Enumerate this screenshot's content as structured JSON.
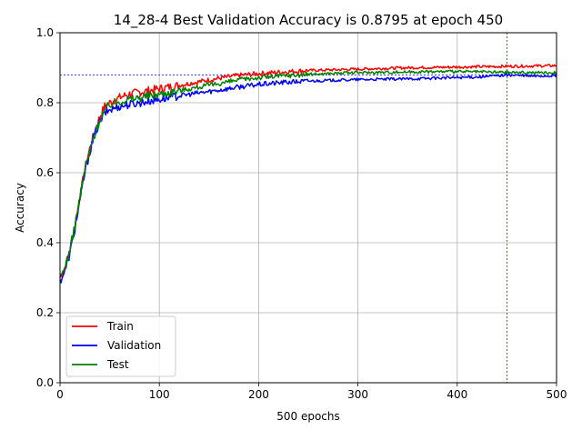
{
  "chart_data": {
    "type": "line",
    "title": "14_28-4 Best Validation Accuracy is 0.8795 at epoch 450",
    "xlabel": "500 epochs",
    "ylabel": "Accuracy",
    "xlim": [
      0,
      500
    ],
    "ylim": [
      0,
      1.0
    ],
    "x_ticks": [
      0,
      100,
      200,
      300,
      400,
      500
    ],
    "y_ticks": [
      0.0,
      0.2,
      0.4,
      0.6,
      0.8,
      1.0
    ],
    "x_tick_labels": [
      "0",
      "100",
      "200",
      "300",
      "400",
      "500"
    ],
    "y_tick_labels": [
      "0.0",
      "0.2",
      "0.4",
      "0.6",
      "0.8",
      "1.0"
    ],
    "grid": true,
    "legend": "lower-left",
    "reference_lines": {
      "best_accuracy": 0.8795,
      "best_epoch": 450,
      "color": "#0000ff"
    },
    "series": [
      {
        "name": "Train",
        "color": "#ff0000",
        "x": [
          0,
          5,
          10,
          15,
          20,
          25,
          30,
          35,
          40,
          45,
          50,
          60,
          70,
          80,
          90,
          100,
          120,
          140,
          160,
          180,
          200,
          225,
          250,
          275,
          300,
          325,
          350,
          375,
          400,
          425,
          450,
          475,
          500
        ],
        "values": [
          0.3,
          0.33,
          0.38,
          0.45,
          0.53,
          0.61,
          0.67,
          0.72,
          0.76,
          0.79,
          0.8,
          0.815,
          0.825,
          0.83,
          0.835,
          0.84,
          0.85,
          0.86,
          0.87,
          0.878,
          0.883,
          0.888,
          0.892,
          0.894,
          0.896,
          0.898,
          0.9,
          0.901,
          0.902,
          0.903,
          0.904,
          0.905,
          0.906
        ]
      },
      {
        "name": "Validation",
        "color": "#0000ff",
        "x": [
          0,
          5,
          10,
          15,
          20,
          25,
          30,
          35,
          40,
          45,
          50,
          60,
          70,
          80,
          90,
          100,
          120,
          140,
          160,
          180,
          200,
          225,
          250,
          275,
          300,
          325,
          350,
          375,
          400,
          425,
          450,
          475,
          500
        ],
        "values": [
          0.29,
          0.32,
          0.37,
          0.44,
          0.52,
          0.6,
          0.66,
          0.71,
          0.745,
          0.77,
          0.78,
          0.79,
          0.795,
          0.8,
          0.805,
          0.81,
          0.82,
          0.828,
          0.836,
          0.845,
          0.852,
          0.858,
          0.862,
          0.864,
          0.866,
          0.867,
          0.868,
          0.87,
          0.872,
          0.874,
          0.8795,
          0.876,
          0.877
        ]
      },
      {
        "name": "Test",
        "color": "#008000",
        "x": [
          0,
          5,
          10,
          15,
          20,
          25,
          30,
          35,
          40,
          45,
          50,
          60,
          70,
          80,
          90,
          100,
          120,
          140,
          160,
          180,
          200,
          225,
          250,
          275,
          300,
          325,
          350,
          375,
          400,
          425,
          450,
          475,
          500
        ],
        "values": [
          0.3,
          0.33,
          0.38,
          0.45,
          0.53,
          0.61,
          0.66,
          0.71,
          0.75,
          0.78,
          0.795,
          0.805,
          0.81,
          0.815,
          0.82,
          0.825,
          0.835,
          0.845,
          0.855,
          0.865,
          0.872,
          0.877,
          0.881,
          0.884,
          0.886,
          0.887,
          0.888,
          0.889,
          0.889,
          0.888,
          0.887,
          0.886,
          0.886
        ]
      }
    ]
  }
}
